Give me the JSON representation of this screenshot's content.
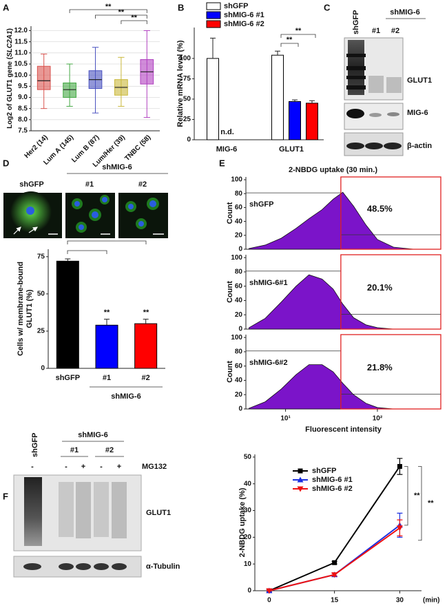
{
  "panel_labels": [
    "A",
    "B",
    "C",
    "D",
    "E",
    "F"
  ],
  "chart_data": [
    {
      "type": "box",
      "y_label": [
        "Log2 of GLUT1 gene (",
        "SLC2A1",
        ")"
      ],
      "categories": [
        "Her2 (14)",
        "Lum A (145)",
        "Lum B (87)",
        "Lum/Her (39)",
        "TNBC (58)"
      ],
      "colors": [
        "#d9534f",
        "#43a843",
        "#4a52c0",
        "#c9b83a",
        "#b040c0"
      ],
      "boxes": [
        {
          "min": 8.5,
          "q1": 9.35,
          "median": 9.75,
          "q3": 10.4,
          "max": 10.95
        },
        {
          "min": 8.6,
          "q1": 9.0,
          "median": 9.35,
          "q3": 9.65,
          "max": 10.5
        },
        {
          "min": 8.3,
          "q1": 9.4,
          "median": 9.8,
          "q3": 10.2,
          "max": 11.25
        },
        {
          "min": 8.6,
          "q1": 9.1,
          "median": 9.45,
          "q3": 9.8,
          "max": 10.8
        },
        {
          "min": 8.1,
          "q1": 9.6,
          "median": 10.15,
          "q3": 10.7,
          "max": 12.0
        }
      ],
      "ylim": [
        7.5,
        12.2
      ],
      "yticks": [
        7.5,
        {
          "value": 8,
          "label": "8.0"
        },
        8.5,
        {
          "value": 9,
          "label": "9.0"
        },
        9.5,
        {
          "value": 10,
          "label": "10.0"
        },
        10.5,
        {
          "value": 11,
          "label": "11.0"
        },
        11.5,
        {
          "value": 12,
          "label": "12.0"
        }
      ],
      "grid": true,
      "significance": [
        "**",
        "**",
        "**"
      ]
    },
    {
      "type": "bar",
      "y_label": "Relative mRNA level (%)",
      "categories": [
        "MIG-6",
        "GLUT1"
      ],
      "series": [
        {
          "name": "shGFP",
          "color": "#ffffff",
          "values": [
            100,
            104
          ],
          "errors": [
            25,
            5
          ]
        },
        {
          "name": "shMIG-6 #1",
          "color": "#0000ff",
          "values": [
            null,
            47
          ],
          "errors": [
            null,
            2
          ]
        },
        {
          "name": "shMIG-6 #2",
          "color": "#ff0000",
          "values": [
            null,
            45
          ],
          "errors": [
            null,
            3
          ]
        }
      ],
      "ylim": [
        0,
        138
      ],
      "yticks": [
        0,
        25,
        50,
        75,
        100
      ],
      "annotations": [
        "n.d."
      ],
      "significance": [
        "**",
        "**"
      ]
    },
    {
      "type": "bar",
      "y_label": [
        "Cells w/ membrane-bound",
        "GLUT1 (%)"
      ],
      "categories": [
        "shGFP",
        "#1",
        "#2"
      ],
      "group_label": "shMIG-6",
      "values": [
        72,
        29,
        30
      ],
      "errors": [
        1.5,
        4,
        3
      ],
      "colors": [
        "#000000",
        "#0000ff",
        "#ff0000"
      ],
      "ylim": [
        0,
        80
      ],
      "yticks": [
        0,
        25,
        50,
        75
      ],
      "significance": [
        "**",
        "**"
      ]
    },
    {
      "type": "area",
      "title": "2-NBDG uptake (30 min.)",
      "label": "shGFP",
      "label_color": "#111111",
      "color": "#7b14c9",
      "x": [
        4,
        6,
        9,
        13,
        18,
        25,
        33,
        42,
        55,
        75,
        100,
        150,
        250
      ],
      "values": [
        1,
        6,
        16,
        30,
        44,
        57,
        72,
        82,
        62,
        35,
        14,
        3,
        0
      ],
      "xlim": [
        3.7,
        490
      ],
      "log_x": true,
      "ylim": [
        0,
        104
      ],
      "yticks": [
        0,
        20,
        40,
        60,
        80,
        100
      ],
      "y_label": "Count",
      "gate": 40,
      "gated": {
        "values": [
          48.5
        ],
        "value_labels": [
          "48.5%"
        ]
      }
    },
    {
      "type": "area",
      "label": "shMIG-6#1",
      "label_color": "#1a3bd1",
      "color": "#7b14c9",
      "x": [
        4,
        6,
        9,
        13,
        18,
        25,
        33,
        42,
        55,
        75,
        100,
        150,
        250
      ],
      "values": [
        2,
        15,
        38,
        60,
        76,
        70,
        56,
        35,
        16,
        6,
        2,
        0,
        0
      ],
      "xlim": [
        3.7,
        490
      ],
      "log_x": true,
      "ylim": [
        0,
        104
      ],
      "yticks": [
        0,
        20,
        40,
        60,
        80,
        100
      ],
      "y_label": "Count",
      "gate": 40,
      "gated": {
        "values": [
          20.1
        ],
        "value_labels": [
          "20.1%"
        ]
      }
    },
    {
      "type": "area",
      "label": "shMIG-6#2",
      "label_color": "#e0287a",
      "color": "#7b14c9",
      "x": [
        4,
        6,
        9,
        13,
        18,
        25,
        33,
        42,
        55,
        75,
        100,
        150,
        250
      ],
      "values": [
        1,
        10,
        28,
        48,
        62,
        62,
        52,
        36,
        20,
        8,
        2,
        0,
        0
      ],
      "xlim": [
        3.7,
        490
      ],
      "log_x": true,
      "xticks": [
        {
          "value": 10,
          "label": "10¹"
        },
        {
          "value": 100,
          "label": "10²"
        }
      ],
      "x_label": "Fluorescent intensity",
      "ylim": [
        0,
        104
      ],
      "yticks": [
        0,
        20,
        40,
        60,
        80,
        100
      ],
      "y_label": "Count",
      "gate": 40,
      "gated": {
        "values": [
          21.8
        ],
        "value_labels": [
          "21.8%"
        ]
      }
    },
    {
      "type": "line",
      "y_label": "2-NBDG uptake (%)",
      "x": [
        0,
        15,
        30
      ],
      "x_unit": "(min)",
      "xlim": [
        -3.3,
        35
      ],
      "xticks": [
        0,
        15,
        30
      ],
      "ylim": [
        0,
        51
      ],
      "yticks": [
        0,
        10,
        20,
        30,
        40,
        50
      ],
      "series": [
        {
          "name": "shGFP",
          "color": "#000000",
          "marker": "square",
          "values": [
            0,
            10.5,
            46.5
          ],
          "errors": [
            0.5,
            0.5,
            3
          ]
        },
        {
          "name": "shMIG-6 #1",
          "color": "#1a2ee0",
          "marker": "triangle",
          "values": [
            0,
            6,
            24.5
          ],
          "errors": [
            0,
            0.5,
            4.5
          ]
        },
        {
          "name": "shMIG-6 #2",
          "color": "#ee1111",
          "marker": "triangle-down",
          "values": [
            0,
            6,
            23.5
          ],
          "errors": [
            0,
            0.5,
            3
          ]
        }
      ],
      "significance": [
        "**",
        "**"
      ]
    }
  ],
  "blot_C": {
    "control": "shGFP",
    "group": "shMIG-6",
    "lanes": [
      "#1",
      "#2"
    ],
    "bands": [
      "GLUT1",
      "MIG-6",
      "β-actin"
    ]
  },
  "images_D": {
    "control": "shGFP",
    "group": "shMIG-6",
    "lanes": [
      "#1",
      "#2"
    ]
  },
  "blot_F": {
    "control": "shGFP",
    "group": "shMIG-6",
    "lanes": [
      "#1",
      "#2"
    ],
    "treatment": "MG132",
    "signs": [
      "-",
      "-",
      "+",
      "-",
      "+"
    ],
    "bands": [
      "GLUT1",
      "α-Tubulin"
    ]
  }
}
